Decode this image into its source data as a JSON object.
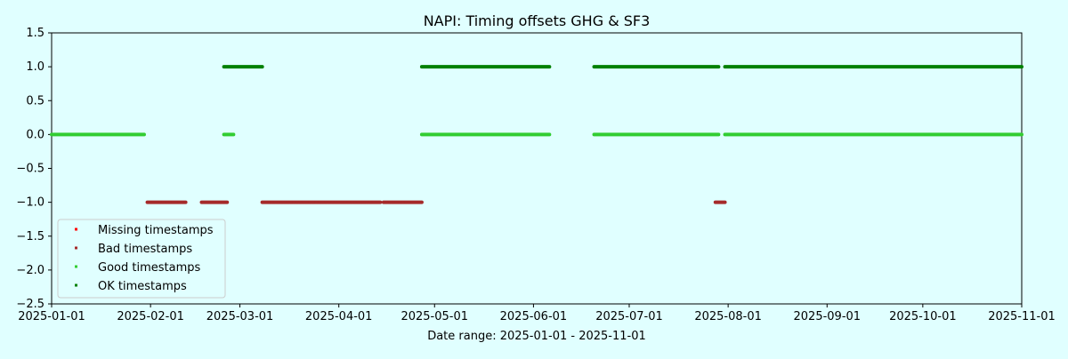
{
  "chart_data": {
    "type": "scatter",
    "title": "NAPI: Timing offsets GHG & SF3",
    "xlabel": "Date range: 2025-01-01 - 2025-11-01",
    "ylabel": "",
    "background_color": "#e0ffff",
    "x_axis": {
      "type": "date",
      "range": [
        "2025-01-01",
        "2025-11-01"
      ],
      "ticks": [
        "2025-01-01",
        "2025-02-01",
        "2025-03-01",
        "2025-04-01",
        "2025-05-01",
        "2025-06-01",
        "2025-07-01",
        "2025-08-01",
        "2025-09-01",
        "2025-10-01",
        "2025-11-01"
      ]
    },
    "y_axis": {
      "range": [
        -2.5,
        1.5
      ],
      "ticks": [
        1.5,
        1.0,
        0.5,
        0.0,
        -0.5,
        -1.0,
        -1.5,
        -2.0,
        -2.5
      ],
      "tick_labels": [
        "1.5",
        "1.0",
        "0.5",
        "0.0",
        "−0.5",
        "−1.0",
        "−1.5",
        "−2.0",
        "−2.5"
      ]
    },
    "grid": false,
    "legend": {
      "placement": "lower-left",
      "entries": [
        {
          "name": "Missing timestamps",
          "color": "#ff0000"
        },
        {
          "name": "Bad timestamps",
          "color": "#a52a2a"
        },
        {
          "name": "Good timestamps",
          "color": "#32cd32"
        },
        {
          "name": "OK timestamps",
          "color": "#008000"
        }
      ]
    },
    "series": [
      {
        "name": "Missing timestamps",
        "color": "#ff0000",
        "y": -1.0,
        "date_ranges": []
      },
      {
        "name": "Bad timestamps",
        "color": "#a52a2a",
        "y": -1.0,
        "date_ranges": [
          [
            "2025-01-31",
            "2025-02-12"
          ],
          [
            "2025-02-17",
            "2025-02-25"
          ],
          [
            "2025-03-08",
            "2025-04-14"
          ],
          [
            "2025-04-15",
            "2025-04-27"
          ],
          [
            "2025-07-28",
            "2025-07-31"
          ]
        ]
      },
      {
        "name": "Good timestamps",
        "color": "#32cd32",
        "y": 0.0,
        "date_ranges": [
          [
            "2025-01-01",
            "2025-01-30"
          ],
          [
            "2025-02-24",
            "2025-02-27"
          ],
          [
            "2025-04-27",
            "2025-06-06"
          ],
          [
            "2025-06-20",
            "2025-07-29"
          ],
          [
            "2025-07-31",
            "2025-11-01"
          ]
        ]
      },
      {
        "name": "OK timestamps",
        "color": "#008000",
        "y": 1.0,
        "date_ranges": [
          [
            "2025-02-24",
            "2025-03-08"
          ],
          [
            "2025-04-27",
            "2025-06-06"
          ],
          [
            "2025-06-20",
            "2025-07-29"
          ],
          [
            "2025-07-31",
            "2025-11-01"
          ]
        ]
      }
    ]
  }
}
